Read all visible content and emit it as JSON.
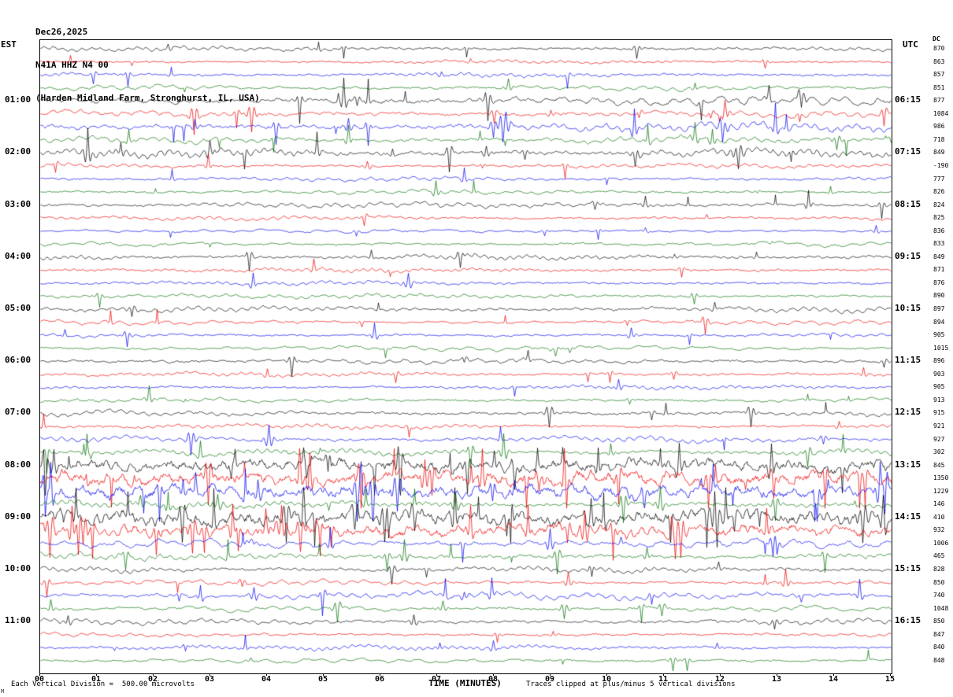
{
  "header": {
    "date": "Dec26,2025",
    "station": "N41A HHZ N4 00",
    "location": "(Harden Midland Farm, Stronghurst, IL, USA)",
    "left_tz": "EST",
    "right_tz": "UTC",
    "dc_label": "DC"
  },
  "footer": {
    "x_axis_title": "TIME (MINUTES)",
    "scale_note": "Each Vertical Division =  500.00 microvolts",
    "clip_note": "Traces clipped at plus/minus 5 vertical divisions",
    "corner_mark": "M"
  },
  "x_ticks": [
    "00",
    "01",
    "02",
    "03",
    "04",
    "05",
    "06",
    "07",
    "08",
    "09",
    "10",
    "11",
    "12",
    "13",
    "14",
    "15"
  ],
  "chart_data": {
    "type": "line",
    "subtype": "seismogram-helicorder",
    "title": "N41A HHZ N4 00 helicorder record, Dec26,2025",
    "xlabel": "TIME (MINUTES)",
    "x_min": 0,
    "x_max": 15,
    "minutes_per_line": 15,
    "vertical_division_microvolts": 500.0,
    "clip_divisions": 5,
    "colors_cycle": [
      "#000000",
      "#ee0000",
      "#0000ee",
      "#007000"
    ],
    "rows": [
      {
        "est": "",
        "utc": "",
        "dc": 870,
        "color": "#000000",
        "amp_rel": 1.6
      },
      {
        "est": "",
        "utc": "",
        "dc": 863,
        "color": "#ee0000",
        "amp_rel": 1.2
      },
      {
        "est": "",
        "utc": "",
        "dc": 857,
        "color": "#0000ee",
        "amp_rel": 1.5
      },
      {
        "est": "",
        "utc": "",
        "dc": 851,
        "color": "#007000",
        "amp_rel": 1.8
      },
      {
        "est": "01:00",
        "utc": "06:15",
        "dc": 877,
        "color": "#000000",
        "amp_rel": 3.2
      },
      {
        "est": "",
        "utc": "",
        "dc": 1084,
        "color": "#ee0000",
        "amp_rel": 2.6
      },
      {
        "est": "",
        "utc": "",
        "dc": 986,
        "color": "#0000ee",
        "amp_rel": 3.0
      },
      {
        "est": "",
        "utc": "",
        "dc": 718,
        "color": "#007000",
        "amp_rel": 2.4
      },
      {
        "est": "02:00",
        "utc": "07:15",
        "dc": 849,
        "color": "#000000",
        "amp_rel": 3.0
      },
      {
        "est": "",
        "utc": "",
        "dc": -190,
        "color": "#ee0000",
        "amp_rel": 1.6
      },
      {
        "est": "",
        "utc": "",
        "dc": 777,
        "color": "#0000ee",
        "amp_rel": 1.5
      },
      {
        "est": "",
        "utc": "",
        "dc": 826,
        "color": "#007000",
        "amp_rel": 1.5
      },
      {
        "est": "03:00",
        "utc": "08:15",
        "dc": 824,
        "color": "#000000",
        "amp_rel": 1.9
      },
      {
        "est": "",
        "utc": "",
        "dc": 825,
        "color": "#ee0000",
        "amp_rel": 1.5
      },
      {
        "est": "",
        "utc": "",
        "dc": 836,
        "color": "#0000ee",
        "amp_rel": 1.3
      },
      {
        "est": "",
        "utc": "",
        "dc": 833,
        "color": "#007000",
        "amp_rel": 1.5
      },
      {
        "est": "04:00",
        "utc": "09:15",
        "dc": 849,
        "color": "#000000",
        "amp_rel": 1.9
      },
      {
        "est": "",
        "utc": "",
        "dc": 871,
        "color": "#ee0000",
        "amp_rel": 1.5
      },
      {
        "est": "",
        "utc": "",
        "dc": 876,
        "color": "#0000ee",
        "amp_rel": 1.4
      },
      {
        "est": "",
        "utc": "",
        "dc": 890,
        "color": "#007000",
        "amp_rel": 1.5
      },
      {
        "est": "05:00",
        "utc": "10:15",
        "dc": 897,
        "color": "#000000",
        "amp_rel": 2.1
      },
      {
        "est": "",
        "utc": "",
        "dc": 894,
        "color": "#ee0000",
        "amp_rel": 1.7
      },
      {
        "est": "",
        "utc": "",
        "dc": 905,
        "color": "#0000ee",
        "amp_rel": 1.5
      },
      {
        "est": "",
        "utc": "",
        "dc": 1015,
        "color": "#007000",
        "amp_rel": 1.6
      },
      {
        "est": "06:00",
        "utc": "11:15",
        "dc": 896,
        "color": "#000000",
        "amp_rel": 1.9
      },
      {
        "est": "",
        "utc": "",
        "dc": 903,
        "color": "#ee0000",
        "amp_rel": 1.5
      },
      {
        "est": "",
        "utc": "",
        "dc": 905,
        "color": "#0000ee",
        "amp_rel": 1.4
      },
      {
        "est": "",
        "utc": "",
        "dc": 913,
        "color": "#007000",
        "amp_rel": 1.5
      },
      {
        "est": "07:00",
        "utc": "12:15",
        "dc": 915,
        "color": "#000000",
        "amp_rel": 2.0
      },
      {
        "est": "",
        "utc": "",
        "dc": 921,
        "color": "#ee0000",
        "amp_rel": 1.7
      },
      {
        "est": "",
        "utc": "",
        "dc": 927,
        "color": "#0000ee",
        "amp_rel": 2.3
      },
      {
        "est": "",
        "utc": "",
        "dc": 302,
        "color": "#007000",
        "amp_rel": 2.6
      },
      {
        "est": "08:00",
        "utc": "13:15",
        "dc": 845,
        "color": "#000000",
        "amp_rel": 4.2
      },
      {
        "est": "",
        "utc": "",
        "dc": 1350,
        "color": "#ee0000",
        "amp_rel": 4.6
      },
      {
        "est": "",
        "utc": "",
        "dc": 1229,
        "color": "#0000ee",
        "amp_rel": 4.4
      },
      {
        "est": "",
        "utc": "",
        "dc": 146,
        "color": "#007000",
        "amp_rel": 2.6
      },
      {
        "est": "09:00",
        "utc": "14:15",
        "dc": 410,
        "color": "#000000",
        "amp_rel": 4.6
      },
      {
        "est": "",
        "utc": "",
        "dc": 932,
        "color": "#ee0000",
        "amp_rel": 4.0
      },
      {
        "est": "",
        "utc": "",
        "dc": 1006,
        "color": "#0000ee",
        "amp_rel": 3.0
      },
      {
        "est": "",
        "utc": "",
        "dc": 465,
        "color": "#007000",
        "amp_rel": 2.4
      },
      {
        "est": "10:00",
        "utc": "15:15",
        "dc": 828,
        "color": "#000000",
        "amp_rel": 2.2
      },
      {
        "est": "",
        "utc": "",
        "dc": 850,
        "color": "#ee0000",
        "amp_rel": 1.8
      },
      {
        "est": "",
        "utc": "",
        "dc": 740,
        "color": "#0000ee",
        "amp_rel": 2.6
      },
      {
        "est": "",
        "utc": "",
        "dc": 1048,
        "color": "#007000",
        "amp_rel": 1.9
      },
      {
        "est": "11:00",
        "utc": "16:15",
        "dc": 850,
        "color": "#000000",
        "amp_rel": 2.0
      },
      {
        "est": "",
        "utc": "",
        "dc": 847,
        "color": "#ee0000",
        "amp_rel": 1.5
      },
      {
        "est": "",
        "utc": "",
        "dc": 840,
        "color": "#0000ee",
        "amp_rel": 1.7
      },
      {
        "est": "",
        "utc": "",
        "dc": 848,
        "color": "#007000",
        "amp_rel": 1.6
      }
    ]
  }
}
